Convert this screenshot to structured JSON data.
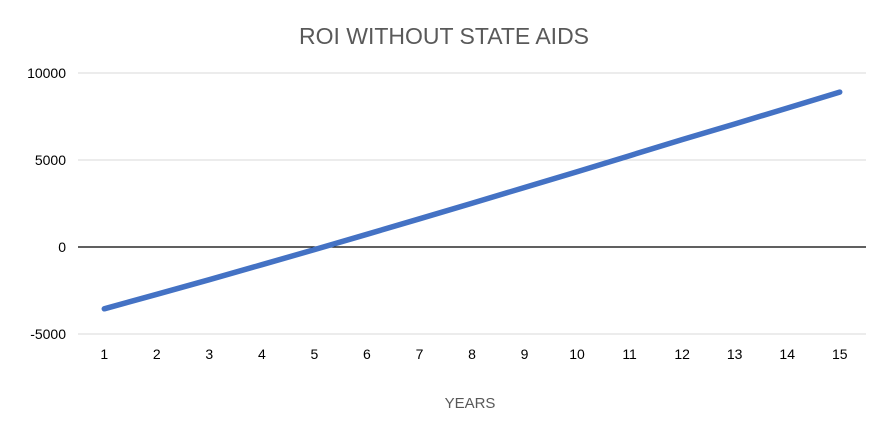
{
  "chart_data": {
    "type": "line",
    "title": "ROI WITHOUT STATE AIDS",
    "xlabel": "YEARS",
    "ylabel": "",
    "categories": [
      "1",
      "2",
      "3",
      "4",
      "5",
      "6",
      "7",
      "8",
      "9",
      "10",
      "11",
      "12",
      "13",
      "14",
      "15"
    ],
    "ylim": [
      -5000,
      10000
    ],
    "yticks": [
      10000,
      5000,
      0,
      -5000
    ],
    "grid": true,
    "legend": "none",
    "series": [
      {
        "name": "ROI",
        "color": "#4472c4",
        "values": [
          -3550,
          -2720,
          -1880,
          -1020,
          -150,
          730,
          1620,
          2520,
          3420,
          4330,
          5250,
          6170,
          7070,
          7980,
          8900
        ]
      }
    ]
  }
}
